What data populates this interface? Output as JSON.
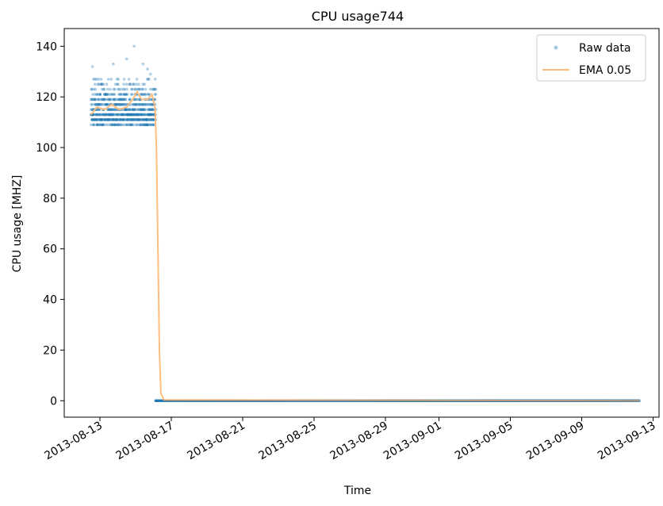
{
  "chart_data": {
    "type": "scatter",
    "title": "CPU usage744",
    "xlabel": "Time",
    "ylabel": "CPU usage [MHZ]",
    "x_axis_type": "date",
    "xlim": [
      "2013-08-11T00:00:00",
      "2013-09-13T08:00:00"
    ],
    "ylim": [
      -6.5,
      147
    ],
    "y_ticks": [
      0,
      20,
      40,
      60,
      80,
      100,
      120,
      140
    ],
    "x_ticks": [
      {
        "date": "2013-08-13",
        "label": "2013-08-13"
      },
      {
        "date": "2013-08-17",
        "label": "2013-08-17"
      },
      {
        "date": "2013-08-21",
        "label": "2013-08-21"
      },
      {
        "date": "2013-08-25",
        "label": "2013-08-25"
      },
      {
        "date": "2013-08-29",
        "label": "2013-08-29"
      },
      {
        "date": "2013-09-01",
        "label": "2013-09-01"
      },
      {
        "date": "2013-09-05",
        "label": "2013-09-05"
      },
      {
        "date": "2013-09-09",
        "label": "2013-09-09"
      },
      {
        "date": "2013-09-13",
        "label": "2013-09-13"
      }
    ],
    "legend": {
      "position": "top-right"
    },
    "grid": false,
    "series": [
      {
        "name": "Raw data",
        "style": "markers",
        "color": "#1f77b4",
        "alpha": 0.35,
        "segments": [
          {
            "start": "2013-08-12T12:00:00",
            "end": "2013-08-16T03:00:00",
            "levels": [
              109,
              111,
              113,
              115,
              117,
              119,
              121,
              123,
              125,
              127
            ],
            "outliers": [
              {
                "x": "2013-08-12T14:00:00",
                "y": 132
              },
              {
                "x": "2013-08-13T18:00:00",
                "y": 133
              },
              {
                "x": "2013-08-14T12:00:00",
                "y": 135
              },
              {
                "x": "2013-08-14T22:00:00",
                "y": 140
              },
              {
                "x": "2013-08-15T10:00:00",
                "y": 133
              },
              {
                "x": "2013-08-15T16:00:00",
                "y": 131
              },
              {
                "x": "2013-08-15T20:00:00",
                "y": 129
              }
            ]
          },
          {
            "start": "2013-08-16T03:00:00",
            "end": "2013-09-12T06:00:00",
            "value": 0
          }
        ]
      },
      {
        "name": "EMA 0.05",
        "style": "line",
        "color": "#ffbb78",
        "points": [
          {
            "x": "2013-08-12T12:00:00",
            "y": 113
          },
          {
            "x": "2013-08-12T20:00:00",
            "y": 116
          },
          {
            "x": "2013-08-13T06:00:00",
            "y": 115
          },
          {
            "x": "2013-08-13T16:00:00",
            "y": 117
          },
          {
            "x": "2013-08-14T02:00:00",
            "y": 115
          },
          {
            "x": "2013-08-14T12:00:00",
            "y": 116
          },
          {
            "x": "2013-08-14T20:00:00",
            "y": 119
          },
          {
            "x": "2013-08-15T02:00:00",
            "y": 122
          },
          {
            "x": "2013-08-15T08:00:00",
            "y": 119
          },
          {
            "x": "2013-08-15T16:00:00",
            "y": 119
          },
          {
            "x": "2013-08-15T22:00:00",
            "y": 121
          },
          {
            "x": "2013-08-16T02:00:00",
            "y": 116
          },
          {
            "x": "2013-08-16T04:00:00",
            "y": 100
          },
          {
            "x": "2013-08-16T06:00:00",
            "y": 60
          },
          {
            "x": "2013-08-16T08:00:00",
            "y": 20
          },
          {
            "x": "2013-08-16T10:00:00",
            "y": 3
          },
          {
            "x": "2013-08-16T14:00:00",
            "y": 0.3
          },
          {
            "x": "2013-09-12T06:00:00",
            "y": 0
          }
        ]
      }
    ]
  }
}
